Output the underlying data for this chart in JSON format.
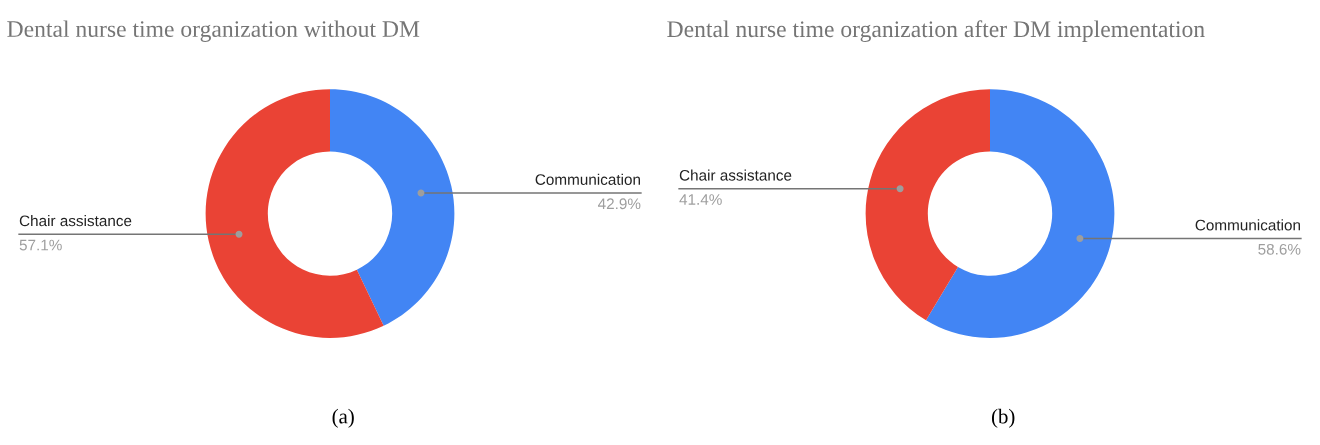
{
  "chart_data": [
    {
      "type": "donut",
      "title": "Dental nurse time organization without DM",
      "categories": [
        "Communication",
        "Chair assistance"
      ],
      "values": [
        42.9,
        57.1
      ],
      "colors": [
        "#4285f4",
        "#ea4335"
      ],
      "value_labels": [
        "42.9%",
        "57.1%"
      ],
      "annotations": [
        "(a)"
      ],
      "legend": false
    },
    {
      "type": "donut",
      "title": "Dental nurse time organization after DM implementation",
      "categories": [
        "Communication",
        "Chair assistance"
      ],
      "values": [
        58.6,
        41.4
      ],
      "colors": [
        "#4285f4",
        "#ea4335"
      ],
      "value_labels": [
        "58.6%",
        "41.4%"
      ],
      "annotations": [
        "(b)"
      ],
      "legend": false
    }
  ]
}
